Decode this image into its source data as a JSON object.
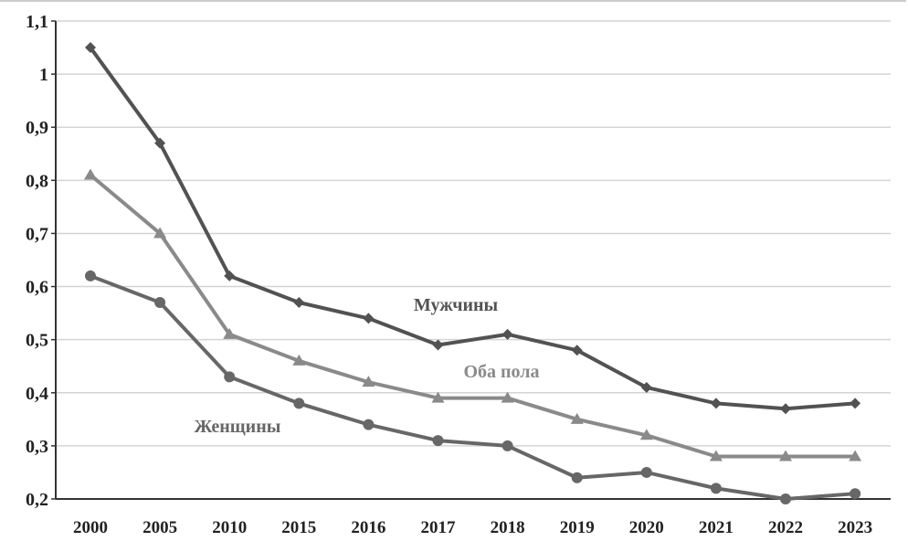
{
  "chart_data": {
    "type": "line",
    "title": "",
    "xlabel": "",
    "ylabel": "",
    "categories": [
      "2000",
      "2005",
      "2010",
      "2015",
      "2016",
      "2017",
      "2018",
      "2019",
      "2020",
      "2021",
      "2022",
      "2023"
    ],
    "ylim": [
      0.2,
      1.1
    ],
    "yticks": [
      "0,2",
      "0,3",
      "0,4",
      "0,5",
      "0,6",
      "0,7",
      "0,8",
      "0,9",
      "1",
      "1,1"
    ],
    "grid": true,
    "series": [
      {
        "name": "Мужчины",
        "marker": "diamond",
        "color": "#525252",
        "values": [
          1.05,
          0.87,
          0.62,
          0.57,
          0.54,
          0.49,
          0.51,
          0.48,
          0.41,
          0.38,
          0.37,
          0.38
        ]
      },
      {
        "name": "Оба пола",
        "marker": "triangle",
        "color": "#8a8a8a",
        "values": [
          0.81,
          0.7,
          0.51,
          0.46,
          0.42,
          0.39,
          0.39,
          0.35,
          0.32,
          0.28,
          0.28,
          0.28
        ]
      },
      {
        "name": "Женщины",
        "marker": "circle",
        "color": "#676767",
        "values": [
          0.62,
          0.57,
          0.43,
          0.38,
          0.34,
          0.31,
          0.3,
          0.24,
          0.25,
          0.22,
          0.2,
          0.21
        ]
      }
    ]
  }
}
